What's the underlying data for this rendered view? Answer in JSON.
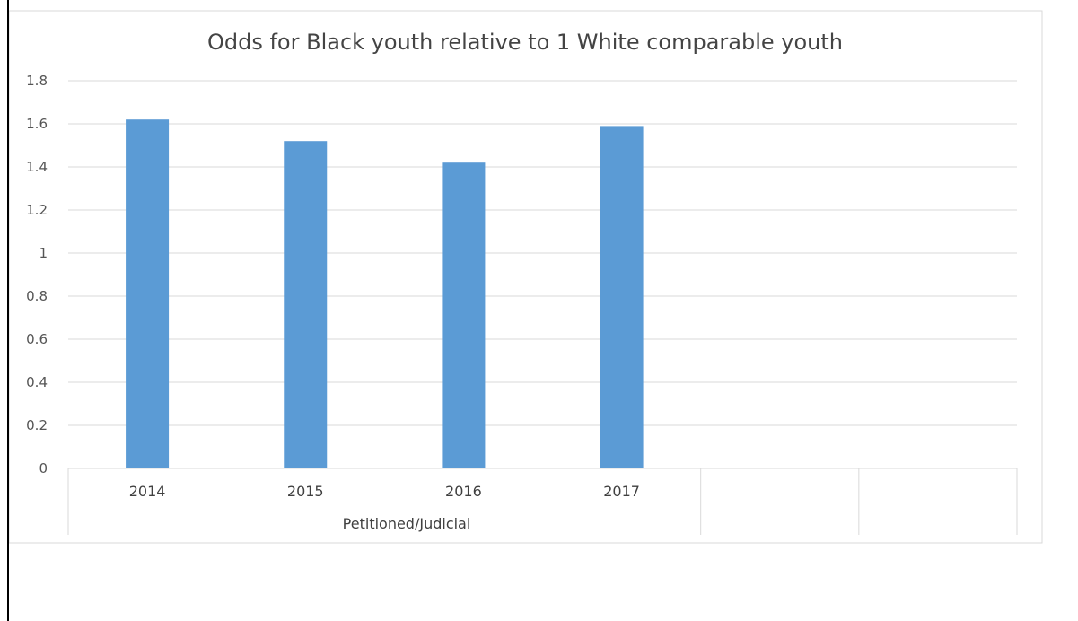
{
  "chart_data": {
    "type": "bar",
    "title": "Odds for Black youth relative to 1 White comparable youth",
    "categories": [
      "2014",
      "2015",
      "2016",
      "2017",
      "",
      ""
    ],
    "group_label": "Petitioned/Judicial",
    "series": [
      {
        "values": [
          1.62,
          1.52,
          1.42,
          1.59,
          null,
          null
        ]
      }
    ],
    "ylim": [
      0,
      1.8
    ],
    "yticks": [
      "1.8",
      "1.6",
      "1.4",
      "1.2",
      "1",
      "0.8",
      "0.6",
      "0.4",
      "0.2",
      "0"
    ],
    "grid": true,
    "legend": "none",
    "bar_color": "#5b9bd5"
  }
}
